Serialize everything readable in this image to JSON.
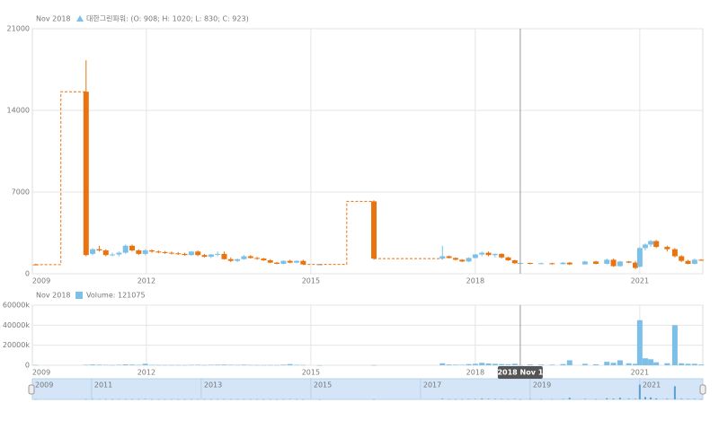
{
  "chart_data": {
    "type": "candlestick",
    "legend_date": "Nov 2018",
    "legend_text": "대한그린파워: (O: 908; H: 1020; L: 830; C: 923)",
    "volume_legend_date": "Nov 2018",
    "volume_legend_text": "Volume: 121075",
    "cursor_label": "2018 Nov 1",
    "cursor_x": 2018.82,
    "up_color": "#7cc0ea",
    "down_color": "#e8730f",
    "volume_color": "#7cc0ea",
    "grid": true,
    "xlim": [
      2009.92,
      2022.15
    ],
    "xticks": [
      {
        "value": 2009.92,
        "label": "2009"
      },
      2012,
      2015,
      2018,
      2021
    ],
    "ylim": [
      0,
      21000
    ],
    "yticks": [
      0,
      7000,
      14000,
      21000
    ],
    "volume_ylim": [
      0,
      60000000
    ],
    "volume_yticks": [
      {
        "value": 0,
        "label": "0"
      },
      {
        "value": 20000000,
        "label": "20000k"
      },
      {
        "value": 40000000,
        "label": "40000k"
      },
      {
        "value": 60000000,
        "label": "60000k"
      }
    ],
    "navigator_ticks": [
      {
        "value": 2009.92,
        "label": "2009"
      },
      2011,
      2013,
      2015,
      2017,
      2019,
      2021
    ],
    "x": [
      2009.98,
      2010.9,
      2011.02,
      2011.14,
      2011.26,
      2011.38,
      2011.5,
      2011.62,
      2011.74,
      2011.86,
      2011.98,
      2012.1,
      2012.22,
      2012.34,
      2012.46,
      2012.58,
      2012.7,
      2012.82,
      2012.94,
      2013.06,
      2013.18,
      2013.3,
      2013.42,
      2013.54,
      2013.66,
      2013.78,
      2013.9,
      2014.02,
      2014.14,
      2014.26,
      2014.38,
      2014.5,
      2014.62,
      2014.74,
      2014.86,
      2015.16,
      2016.15,
      2017.4,
      2017.52,
      2017.64,
      2017.76,
      2017.88,
      2018.0,
      2018.12,
      2018.24,
      2018.36,
      2018.48,
      2018.6,
      2018.72,
      2018.82,
      2019.0,
      2019.2,
      2019.4,
      2019.6,
      2019.72,
      2020.0,
      2020.2,
      2020.4,
      2020.52,
      2020.64,
      2020.8,
      2020.92,
      2021.0,
      2021.1,
      2021.2,
      2021.3,
      2021.5,
      2021.64,
      2021.76,
      2021.88,
      2022.0,
      2022.12
    ],
    "open": [
      800,
      15600,
      1700,
      2100,
      2000,
      1600,
      1650,
      1800,
      2400,
      2000,
      1700,
      2000,
      1900,
      1850,
      1800,
      1750,
      1700,
      1600,
      1900,
      1600,
      1450,
      1650,
      1700,
      1250,
      1100,
      1250,
      1500,
      1350,
      1300,
      1150,
      950,
      850,
      1100,
      950,
      1100,
      800,
      6200,
      1300,
      1500,
      1350,
      1200,
      1050,
      1350,
      1650,
      1800,
      1600,
      1700,
      1400,
      1150,
      908,
      923,
      850,
      900,
      820,
      950,
      800,
      1050,
      850,
      1200,
      650,
      1050,
      950,
      600,
      2200,
      2500,
      2800,
      2300,
      2100,
      1500,
      1100,
      850,
      1200
    ],
    "high": [
      850,
      18300,
      2200,
      2400,
      2100,
      1800,
      1900,
      2500,
      2500,
      2100,
      2100,
      2100,
      2000,
      1950,
      1900,
      1850,
      1800,
      1950,
      2000,
      1700,
      1700,
      1900,
      1900,
      1400,
      1300,
      1600,
      1600,
      1450,
      1350,
      1250,
      1000,
      1150,
      1200,
      1150,
      1200,
      850,
      6300,
      2400,
      1550,
      1400,
      1250,
      1400,
      1700,
      1900,
      1900,
      1750,
      1750,
      1450,
      1200,
      1020,
      950,
      950,
      950,
      1000,
      1000,
      1100,
      1100,
      1300,
      1300,
      1100,
      1100,
      1100,
      2300,
      2600,
      2900,
      2900,
      2400,
      2200,
      1600,
      1200,
      1300,
      1250
    ],
    "low": [
      750,
      1500,
      1600,
      1900,
      1500,
      1500,
      1500,
      1700,
      1900,
      1600,
      1600,
      1800,
      1750,
      1700,
      1650,
      1600,
      1550,
      1550,
      1500,
      1400,
      1350,
      1500,
      1200,
      1000,
      1000,
      1200,
      1300,
      1200,
      1100,
      900,
      800,
      800,
      900,
      900,
      750,
      780,
      1200,
      1200,
      1300,
      1150,
      1000,
      1000,
      1300,
      1500,
      1500,
      1400,
      1300,
      1100,
      850,
      830,
      800,
      820,
      780,
      800,
      750,
      780,
      800,
      800,
      600,
      600,
      900,
      400,
      550,
      2000,
      2300,
      2200,
      1900,
      1400,
      1000,
      800,
      800,
      1100
    ],
    "close": [
      780,
      1600,
      2100,
      2000,
      1600,
      1650,
      1800,
      2400,
      2000,
      1700,
      2000,
      1900,
      1850,
      1800,
      1750,
      1700,
      1600,
      1900,
      1600,
      1450,
      1650,
      1700,
      1250,
      1100,
      1250,
      1500,
      1350,
      1300,
      1150,
      950,
      850,
      1100,
      950,
      1100,
      800,
      800,
      1300,
      1500,
      1350,
      1200,
      1050,
      1350,
      1650,
      1800,
      1600,
      1700,
      1400,
      1150,
      900,
      923,
      850,
      900,
      820,
      950,
      800,
      1050,
      850,
      1200,
      650,
      1050,
      950,
      500,
      2200,
      2500,
      2800,
      2300,
      2100,
      1500,
      1100,
      850,
      1200,
      1150
    ],
    "volume": [
      300000,
      500000,
      800000,
      600000,
      400000,
      300000,
      500000,
      900000,
      700000,
      400000,
      1500000,
      400000,
      300000,
      300000,
      250000,
      300000,
      250000,
      400000,
      500000,
      300000,
      500000,
      600000,
      700000,
      500000,
      400000,
      600000,
      350000,
      300000,
      250000,
      300000,
      250000,
      600000,
      1200000,
      400000,
      300000,
      100000,
      200000,
      2000000,
      800000,
      600000,
      500000,
      1200000,
      1500000,
      2500000,
      1800000,
      1500000,
      1200000,
      1000000,
      1500000,
      121075,
      800000,
      700000,
      600000,
      1200000,
      5000000,
      1500000,
      1000000,
      3500000,
      2500000,
      5000000,
      2000000,
      1500000,
      45000000,
      7000000,
      6000000,
      3000000,
      2000000,
      40000000,
      2000000,
      1500000,
      1500000,
      800000
    ]
  }
}
